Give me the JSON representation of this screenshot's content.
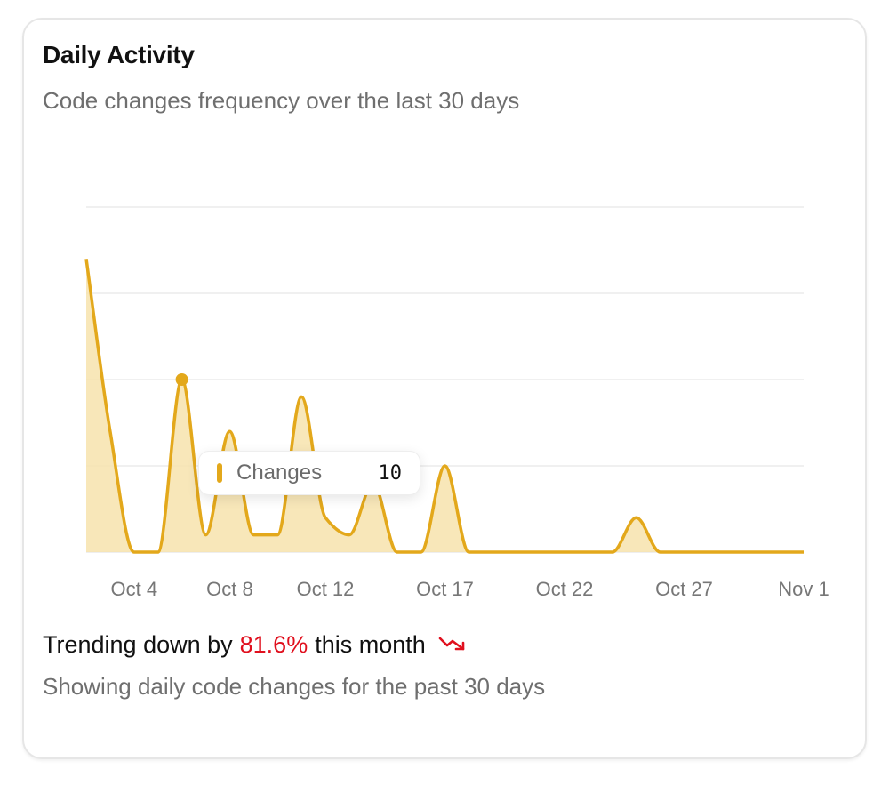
{
  "card": {
    "title": "Daily Activity",
    "subtitle": "Code changes frequency over the last 30 days"
  },
  "tooltip": {
    "label": "Changes",
    "value": "10"
  },
  "footer": {
    "trend_prefix": "Trending down by",
    "trend_percent": "81.6%",
    "trend_suffix": "this month",
    "trend_icon": "trending-down-icon",
    "note": "Showing daily code changes for the past 30 days"
  },
  "colors": {
    "series": "#e3a81b",
    "area": "#f7e3ad",
    "trend_down": "#e0101e"
  },
  "chart_data": {
    "type": "area",
    "x": [
      "Oct 2",
      "Oct 3",
      "Oct 4",
      "Oct 5",
      "Oct 6",
      "Oct 7",
      "Oct 8",
      "Oct 9",
      "Oct 10",
      "Oct 11",
      "Oct 12",
      "Oct 13",
      "Oct 14",
      "Oct 15",
      "Oct 16",
      "Oct 17",
      "Oct 18",
      "Oct 19",
      "Oct 20",
      "Oct 21",
      "Oct 22",
      "Oct 23",
      "Oct 24",
      "Oct 25",
      "Oct 26",
      "Oct 27",
      "Oct 28",
      "Oct 29",
      "Oct 30",
      "Oct 31",
      "Nov 1"
    ],
    "series": [
      {
        "values": [
          17,
          7,
          0,
          0,
          10,
          1,
          7,
          1,
          1,
          9,
          2,
          1,
          4,
          0,
          0,
          5,
          0,
          0,
          0,
          0,
          0,
          0,
          0,
          2,
          0,
          0,
          0,
          0,
          0,
          0,
          0
        ]
      }
    ],
    "xticks": [
      "Oct 4",
      "Oct 8",
      "Oct 12",
      "Oct 17",
      "Oct 22",
      "Oct 27",
      "Nov 1"
    ],
    "ylim": [
      0,
      20
    ],
    "grid": true,
    "active_point": "Oct 6"
  }
}
